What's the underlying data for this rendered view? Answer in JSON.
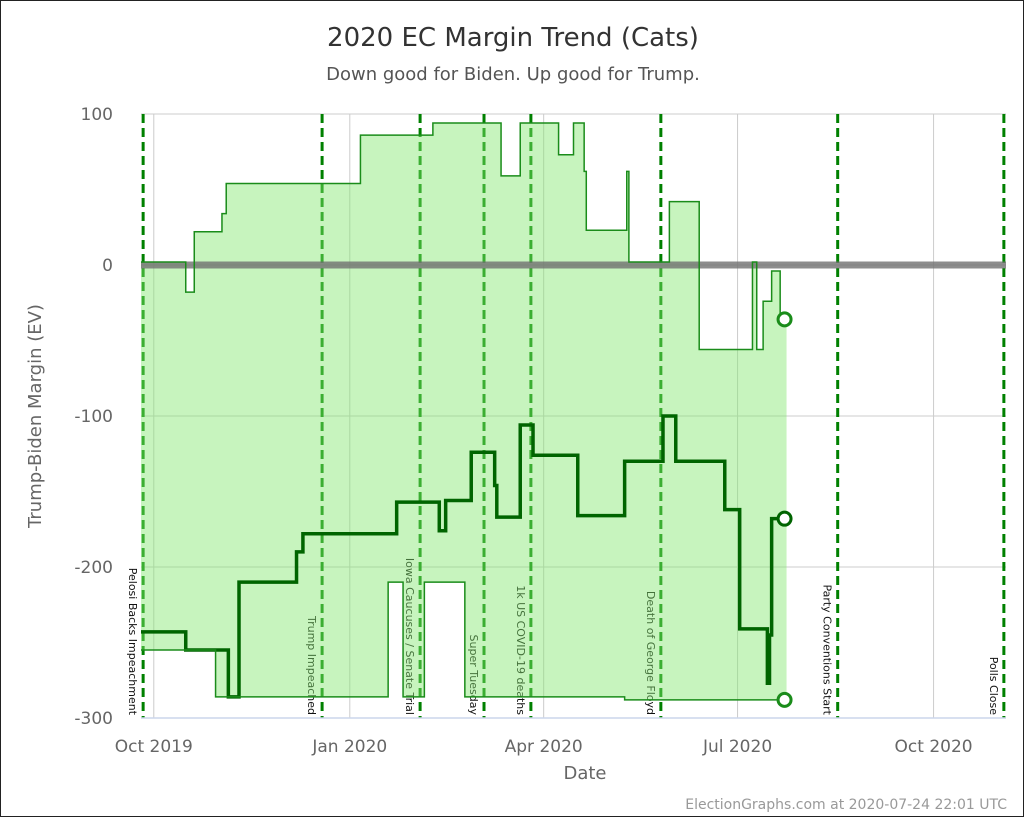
{
  "chart_data": {
    "type": "line",
    "title": "2020 EC Margin Trend (Cats)",
    "subtitle": "Down good for Biden. Up good for Trump.",
    "xlabel": "Date",
    "ylabel": "Trump-Biden Margin (EV)",
    "xlim": [
      "2019-09-25",
      "2020-11-04"
    ],
    "ylim": [
      -300,
      100
    ],
    "x_ticks": [
      {
        "date": "2019-10-01",
        "label": "Oct 2019"
      },
      {
        "date": "2020-01-01",
        "label": "Jan 2020"
      },
      {
        "date": "2020-04-01",
        "label": "Apr 2020"
      },
      {
        "date": "2020-07-01",
        "label": "Jul 2020"
      },
      {
        "date": "2020-10-01",
        "label": "Oct 2020"
      }
    ],
    "y_ticks": [
      {
        "value": 100,
        "label": "100"
      },
      {
        "value": 0,
        "label": "0"
      },
      {
        "value": -100,
        "label": "-100"
      },
      {
        "value": -200,
        "label": "-200"
      },
      {
        "value": -300,
        "label": "-300"
      }
    ],
    "grid": true,
    "step": true,
    "end_date": "2020-07-24",
    "fill_between": [
      "upper",
      "lower"
    ],
    "series": [
      {
        "id": "upper",
        "color": "#1a8c1a",
        "points": [
          [
            "2019-09-25",
            2
          ],
          [
            "2019-10-16",
            -18
          ],
          [
            "2019-10-20",
            22
          ],
          [
            "2019-11-02",
            34
          ],
          [
            "2019-11-04",
            54
          ],
          [
            "2020-01-06",
            86
          ],
          [
            "2020-02-09",
            94
          ],
          [
            "2020-03-12",
            59
          ],
          [
            "2020-03-21",
            94
          ],
          [
            "2020-04-08",
            73
          ],
          [
            "2020-04-15",
            94
          ],
          [
            "2020-04-20",
            62
          ],
          [
            "2020-04-21",
            23
          ],
          [
            "2020-05-10",
            62
          ],
          [
            "2020-05-11",
            2
          ],
          [
            "2020-05-30",
            42
          ],
          [
            "2020-06-13",
            -56
          ],
          [
            "2020-07-08",
            2
          ],
          [
            "2020-07-10",
            -56
          ],
          [
            "2020-07-13",
            -24
          ],
          [
            "2020-07-17",
            -4
          ],
          [
            "2020-07-21",
            -36
          ]
        ]
      },
      {
        "id": "expected",
        "color": "#006400",
        "points": [
          [
            "2019-09-25",
            -243
          ],
          [
            "2019-10-16",
            -255
          ],
          [
            "2019-11-05",
            -286
          ],
          [
            "2019-11-10",
            -210
          ],
          [
            "2019-12-07",
            -190
          ],
          [
            "2019-12-10",
            -178
          ],
          [
            "2020-01-23",
            -157
          ],
          [
            "2020-02-12",
            -176
          ],
          [
            "2020-02-15",
            -156
          ],
          [
            "2020-02-27",
            -124
          ],
          [
            "2020-03-09",
            -146
          ],
          [
            "2020-03-10",
            -167
          ],
          [
            "2020-03-21",
            -106
          ],
          [
            "2020-03-27",
            -126
          ],
          [
            "2020-04-17",
            -166
          ],
          [
            "2020-05-09",
            -130
          ],
          [
            "2020-05-27",
            -100
          ],
          [
            "2020-06-02",
            -130
          ],
          [
            "2020-06-25",
            -162
          ],
          [
            "2020-07-02",
            -241
          ],
          [
            "2020-07-15",
            -277
          ],
          [
            "2020-07-16",
            -245
          ],
          [
            "2020-07-17",
            -168
          ]
        ]
      },
      {
        "id": "lower",
        "color": "#1a8c1a",
        "points": [
          [
            "2019-09-25",
            -255
          ],
          [
            "2019-10-30",
            -286
          ],
          [
            "2020-01-19",
            -210
          ],
          [
            "2020-01-26",
            -286
          ],
          [
            "2020-02-05",
            -210
          ],
          [
            "2020-02-24",
            -286
          ],
          [
            "2020-05-09",
            -288
          ]
        ]
      }
    ],
    "events": [
      {
        "date": "2019-09-26",
        "label": "Pelosi Backs Impeachment"
      },
      {
        "date": "2019-12-19",
        "label": "Trump Impeached"
      },
      {
        "date": "2020-02-03",
        "label": "Iowa Caucuses / Senate Trial"
      },
      {
        "date": "2020-03-04",
        "label": "Super Tuesday"
      },
      {
        "date": "2020-03-26",
        "label": "1k US COVID-19 deaths"
      },
      {
        "date": "2020-05-26",
        "label": "Death of George Floyd"
      },
      {
        "date": "2020-08-17",
        "label": "Party Conventions Start"
      },
      {
        "date": "2020-11-03",
        "label": "Polls Close"
      }
    ],
    "colors": {
      "fill": "#c7f4be",
      "event_line": "#008000",
      "zero_line": "#707070"
    }
  },
  "credits": "ElectionGraphs.com at 2020-07-24 22:01 UTC"
}
